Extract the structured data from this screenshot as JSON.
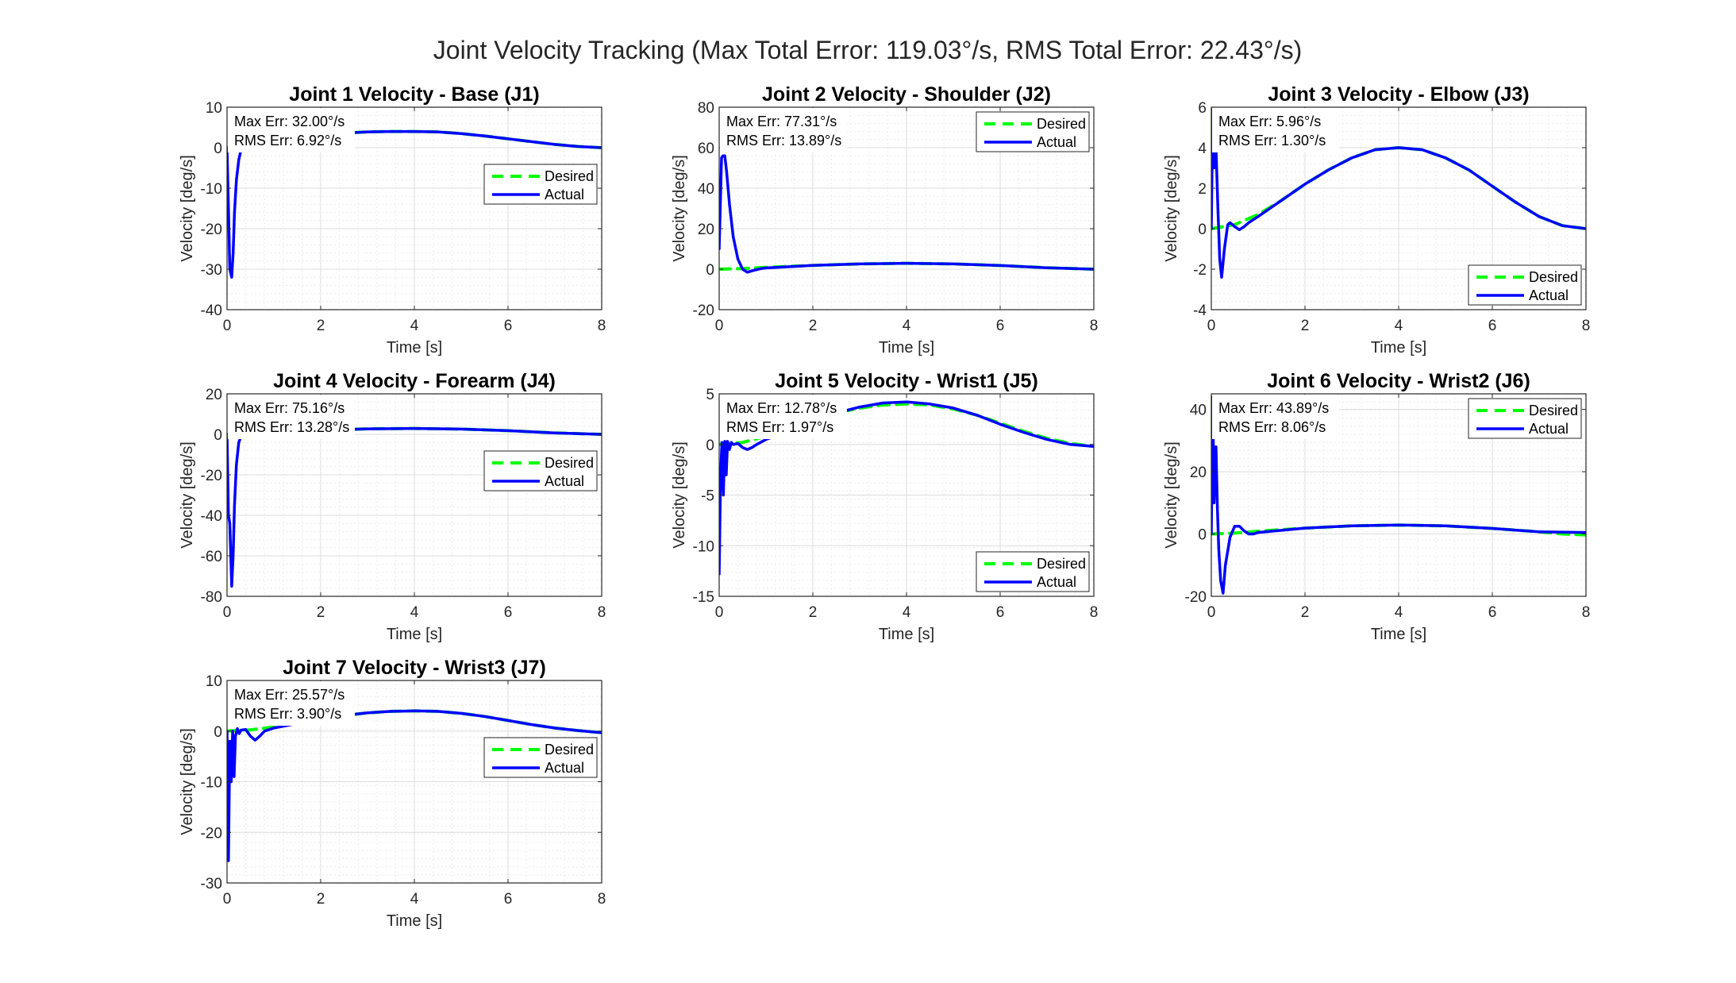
{
  "figure": {
    "title": "Joint Velocity Tracking (Max Total Error: 119.03°/s, RMS Total Error: 22.43°/s)"
  },
  "colors": {
    "desired": "#00ff00",
    "actual": "#0000ff",
    "grid": "#dcdcdc",
    "minor_grid": "#ececec",
    "axes": "#262626"
  },
  "chart_data": [
    {
      "type": "line",
      "title": "Joint 1 Velocity - Base (J1)",
      "xlabel": "Time [s]",
      "ylabel": "Velocity [deg/s]",
      "xlim": [
        0,
        8
      ],
      "ylim": [
        -40,
        10
      ],
      "xticks": [
        0,
        2,
        4,
        6,
        8
      ],
      "yticks": [
        -40,
        -30,
        -20,
        -10,
        0,
        10
      ],
      "grid": true,
      "legend": "center-right",
      "annotation": [
        "Max Err: 32.00°/s",
        "RMS Err: 6.92°/s"
      ],
      "series": [
        {
          "name": "Desired",
          "style": "dashed",
          "x": [
            0,
            0.5,
            1,
            1.5,
            2,
            2.5,
            3,
            3.5,
            4,
            4.5,
            5,
            5.5,
            6,
            6.5,
            7,
            7.5,
            8
          ],
          "y": [
            0,
            0.35,
            1.3,
            2.3,
            3.1,
            3.6,
            3.9,
            4.0,
            4.0,
            3.9,
            3.5,
            2.9,
            2.2,
            1.5,
            0.8,
            0.3,
            0
          ]
        },
        {
          "name": "Actual",
          "style": "solid",
          "x": [
            0,
            0.03,
            0.06,
            0.1,
            0.13,
            0.16,
            0.2,
            0.25,
            0.3,
            0.5,
            1,
            1.5,
            2,
            2.5,
            3,
            3.5,
            4,
            4.5,
            5,
            5.5,
            6,
            6.5,
            7,
            7.5,
            8
          ],
          "y": [
            0,
            -15,
            -30,
            -32,
            -26,
            -16,
            -8,
            -3,
            -0.5,
            0.4,
            1.3,
            2.3,
            3.1,
            3.6,
            3.9,
            4.0,
            4.0,
            3.9,
            3.5,
            2.9,
            2.2,
            1.5,
            0.8,
            0.3,
            0
          ]
        }
      ]
    },
    {
      "type": "line",
      "title": "Joint 2 Velocity - Shoulder (J2)",
      "xlabel": "Time [s]",
      "ylabel": "Velocity [deg/s]",
      "xlim": [
        0,
        8
      ],
      "ylim": [
        -20,
        80
      ],
      "xticks": [
        0,
        2,
        4,
        6,
        8
      ],
      "yticks": [
        -20,
        0,
        20,
        40,
        60,
        80
      ],
      "grid": true,
      "legend": "top-right",
      "annotation": [
        "Max Err: 77.31°/s",
        "RMS Err: 13.89°/s"
      ],
      "series": [
        {
          "name": "Desired",
          "style": "dashed",
          "x": [
            0,
            0.5,
            1,
            2,
            3,
            4,
            5,
            6,
            7,
            8
          ],
          "y": [
            0,
            0.3,
            0.9,
            1.9,
            2.6,
            2.9,
            2.6,
            1.8,
            0.7,
            0
          ]
        },
        {
          "name": "Actual",
          "style": "solid",
          "x": [
            0,
            0.05,
            0.08,
            0.12,
            0.16,
            0.22,
            0.3,
            0.4,
            0.5,
            0.6,
            0.75,
            0.9,
            1,
            2,
            3,
            4,
            5,
            6,
            7,
            8
          ],
          "y": [
            10,
            55,
            56,
            56,
            48,
            32,
            16,
            5,
            0,
            -1.5,
            -0.5,
            0.3,
            0.6,
            1.9,
            2.6,
            2.9,
            2.6,
            1.8,
            0.7,
            0
          ]
        }
      ]
    },
    {
      "type": "line",
      "title": "Joint 3 Velocity - Elbow (J3)",
      "xlabel": "Time [s]",
      "ylabel": "Velocity [deg/s]",
      "xlim": [
        0,
        8
      ],
      "ylim": [
        -4,
        6
      ],
      "xticks": [
        0,
        2,
        4,
        6,
        8
      ],
      "yticks": [
        -4,
        -2,
        0,
        2,
        4,
        6
      ],
      "grid": true,
      "legend": "bottom-right",
      "annotation": [
        "Max Err: 5.96°/s",
        "RMS Err: 1.30°/s"
      ],
      "series": [
        {
          "name": "Desired",
          "style": "dashed",
          "x": [
            0,
            0.5,
            1,
            1.5,
            2,
            2.5,
            3,
            3.5,
            4,
            4.5,
            5,
            5.5,
            6,
            6.5,
            7,
            7.5,
            8
          ],
          "y": [
            0,
            0.2,
            0.7,
            1.4,
            2.2,
            2.9,
            3.5,
            3.9,
            4.0,
            3.9,
            3.5,
            2.9,
            2.1,
            1.3,
            0.6,
            0.15,
            0
          ]
        },
        {
          "name": "Actual",
          "style": "solid",
          "x": [
            0,
            0.03,
            0.06,
            0.1,
            0.14,
            0.18,
            0.22,
            0.28,
            0.35,
            0.4,
            0.5,
            0.6,
            0.7,
            0.8,
            1,
            1.5,
            2,
            2.5,
            3,
            3.5,
            4,
            4.5,
            5,
            5.5,
            6,
            6.5,
            7,
            7.5,
            8
          ],
          "y": [
            0,
            5.9,
            3.0,
            4.0,
            1.0,
            -1.5,
            -2.4,
            -1.0,
            0.2,
            0.3,
            0.1,
            -0.05,
            0.1,
            0.3,
            0.6,
            1.4,
            2.2,
            2.9,
            3.5,
            3.9,
            4.0,
            3.9,
            3.5,
            2.9,
            2.1,
            1.3,
            0.6,
            0.15,
            0
          ]
        }
      ]
    },
    {
      "type": "line",
      "title": "Joint 4 Velocity - Forearm (J4)",
      "xlabel": "Time [s]",
      "ylabel": "Velocity [deg/s]",
      "xlim": [
        0,
        8
      ],
      "ylim": [
        -80,
        20
      ],
      "xticks": [
        0,
        2,
        4,
        6,
        8
      ],
      "yticks": [
        -80,
        -60,
        -40,
        -20,
        0,
        20
      ],
      "grid": true,
      "legend": "center-right",
      "annotation": [
        "Max Err: 75.16°/s",
        "RMS Err: 13.28°/s"
      ],
      "series": [
        {
          "name": "Desired",
          "style": "dashed",
          "x": [
            0,
            0.5,
            1,
            2,
            3,
            4,
            5,
            6,
            7,
            8
          ],
          "y": [
            0,
            0.4,
            1.0,
            2.0,
            2.7,
            2.9,
            2.6,
            1.8,
            0.7,
            0
          ]
        },
        {
          "name": "Actual",
          "style": "solid",
          "x": [
            0,
            0.03,
            0.06,
            0.1,
            0.13,
            0.16,
            0.2,
            0.25,
            0.3,
            0.4,
            0.5,
            1,
            2,
            3,
            4,
            5,
            6,
            7,
            8
          ],
          "y": [
            0,
            -40,
            -44,
            -75,
            -60,
            -35,
            -15,
            -4,
            -1,
            0.2,
            0.5,
            1.0,
            2.0,
            2.7,
            2.9,
            2.6,
            1.8,
            0.7,
            0
          ]
        }
      ]
    },
    {
      "type": "line",
      "title": "Joint 5 Velocity - Wrist1 (J5)",
      "xlabel": "Time [s]",
      "ylabel": "Velocity [deg/s]",
      "xlim": [
        0,
        8
      ],
      "ylim": [
        -15,
        5
      ],
      "xticks": [
        0,
        2,
        4,
        6,
        8
      ],
      "yticks": [
        -15,
        -10,
        -5,
        0,
        5
      ],
      "grid": true,
      "legend": "bottom-right",
      "annotation": [
        "Max Err: 12.78°/s",
        "RMS Err: 1.97°/s"
      ],
      "series": [
        {
          "name": "Desired",
          "style": "dashed",
          "x": [
            0,
            0.5,
            1,
            1.5,
            2,
            2.5,
            3,
            3.5,
            4,
            4.5,
            5,
            5.5,
            6,
            6.5,
            7,
            7.5,
            8
          ],
          "y": [
            0,
            0.2,
            0.8,
            1.6,
            2.4,
            3.1,
            3.6,
            3.9,
            4.0,
            3.9,
            3.5,
            2.9,
            2.1,
            1.3,
            0.6,
            0.1,
            -0.2
          ]
        },
        {
          "name": "Actual",
          "style": "solid",
          "x": [
            0,
            0.03,
            0.06,
            0.09,
            0.12,
            0.15,
            0.18,
            0.22,
            0.26,
            0.3,
            0.4,
            0.5,
            0.6,
            0.7,
            0.8,
            1,
            1.5,
            2,
            2.5,
            3,
            3.5,
            4,
            4.5,
            5,
            5.5,
            6,
            6.5,
            7,
            7.5,
            8
          ],
          "y": [
            -12.8,
            -3,
            0.2,
            -5,
            0.3,
            -3,
            0.3,
            -0.5,
            0.2,
            0,
            0.1,
            -0.3,
            -0.5,
            -0.3,
            0,
            0.5,
            1.3,
            2.3,
            3.1,
            3.7,
            4.1,
            4.2,
            4.0,
            3.6,
            2.9,
            2.0,
            1.2,
            0.5,
            0,
            -0.2
          ]
        }
      ]
    },
    {
      "type": "line",
      "title": "Joint 6 Velocity - Wrist2 (J6)",
      "xlabel": "Time [s]",
      "ylabel": "Velocity [deg/s]",
      "xlim": [
        0,
        8
      ],
      "ylim": [
        -20,
        45
      ],
      "xticks": [
        0,
        2,
        4,
        6,
        8
      ],
      "yticks": [
        -20,
        0,
        20,
        40
      ],
      "grid": true,
      "legend": "top-right",
      "annotation": [
        "Max Err: 43.89°/s",
        "RMS Err: 8.06°/s"
      ],
      "series": [
        {
          "name": "Desired",
          "style": "dashed",
          "x": [
            0,
            0.5,
            1,
            2,
            3,
            4,
            5,
            6,
            7,
            7.5,
            8
          ],
          "y": [
            0,
            0.3,
            0.9,
            1.9,
            2.6,
            2.9,
            2.6,
            1.8,
            0.7,
            0,
            -0.3
          ]
        },
        {
          "name": "Actual",
          "style": "solid",
          "x": [
            0,
            0.03,
            0.06,
            0.1,
            0.13,
            0.16,
            0.2,
            0.25,
            0.3,
            0.4,
            0.5,
            0.6,
            0.7,
            0.8,
            0.9,
            1,
            2,
            3,
            4,
            5,
            6,
            7,
            8
          ],
          "y": [
            0,
            44,
            10,
            28,
            8,
            -5,
            -15,
            -19,
            -10,
            -1,
            2.5,
            2.5,
            1,
            0,
            0,
            0.5,
            1.9,
            2.6,
            2.9,
            2.6,
            1.8,
            0.7,
            0.5
          ]
        }
      ]
    },
    {
      "type": "line",
      "title": "Joint 7 Velocity - Wrist3 (J7)",
      "xlabel": "Time [s]",
      "ylabel": "Velocity [deg/s]",
      "xlim": [
        0,
        8
      ],
      "ylim": [
        -30,
        10
      ],
      "xticks": [
        0,
        2,
        4,
        6,
        8
      ],
      "yticks": [
        -30,
        -20,
        -10,
        0,
        10
      ],
      "grid": true,
      "legend": "center-right",
      "annotation": [
        "Max Err: 25.57°/s",
        "RMS Err: 3.90°/s"
      ],
      "series": [
        {
          "name": "Desired",
          "style": "dashed",
          "x": [
            0,
            0.5,
            1,
            1.5,
            2,
            2.5,
            3,
            3.5,
            4,
            4.5,
            5,
            5.5,
            6,
            6.5,
            7,
            7.5,
            8
          ],
          "y": [
            0,
            0.25,
            0.8,
            1.6,
            2.4,
            3.1,
            3.6,
            3.9,
            4.0,
            3.9,
            3.5,
            2.9,
            2.1,
            1.3,
            0.6,
            0.1,
            -0.3
          ]
        },
        {
          "name": "Actual",
          "style": "solid",
          "x": [
            0,
            0.03,
            0.06,
            0.09,
            0.12,
            0.15,
            0.18,
            0.22,
            0.26,
            0.3,
            0.4,
            0.5,
            0.6,
            0.7,
            0.8,
            1,
            1.5,
            2,
            2.5,
            3,
            3.5,
            4,
            4.5,
            5,
            5.5,
            6,
            6.5,
            7,
            7.5,
            8
          ],
          "y": [
            0,
            -25.6,
            -2,
            -10,
            0,
            -9,
            -1,
            0.5,
            -0.5,
            0.2,
            0.3,
            -1,
            -1.8,
            -1,
            0,
            0.6,
            1.5,
            2.4,
            3.1,
            3.6,
            3.9,
            4.0,
            3.9,
            3.5,
            2.9,
            2.1,
            1.3,
            0.6,
            0.1,
            -0.3
          ]
        }
      ]
    }
  ]
}
